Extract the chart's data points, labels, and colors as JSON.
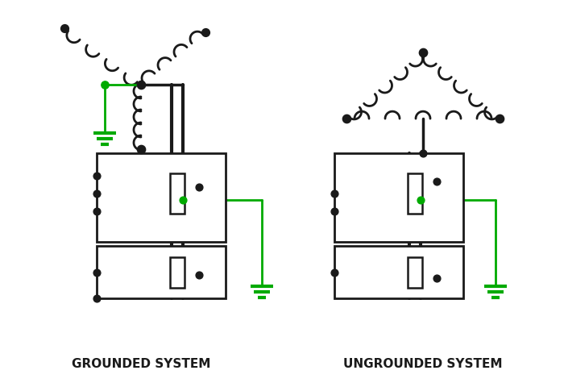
{
  "background_color": "#ffffff",
  "black": "#1a1a1a",
  "green": "#00aa00",
  "label_grounded": "GROUNDED SYSTEM",
  "label_ungrounded": "UNGROUNDED SYSTEM",
  "label_fontsize": 11,
  "label_fontweight": "bold"
}
